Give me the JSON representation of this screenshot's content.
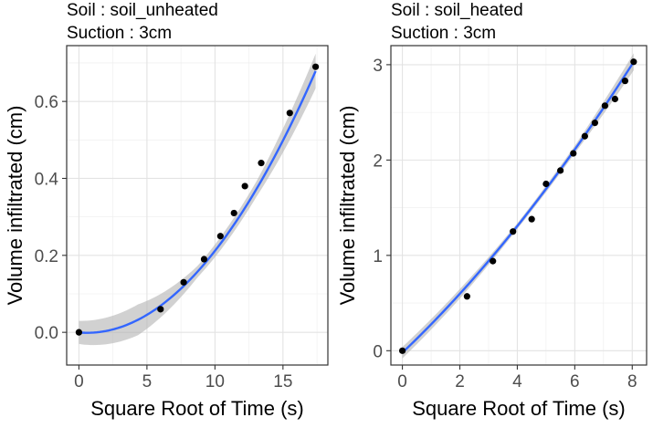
{
  "chart_data": [
    {
      "type": "scatter",
      "title_lines": [
        "Soil : soil_unheated",
        "Suction : 3cm"
      ],
      "xlabel": "Square Root of Time (s)",
      "ylabel": "Volume infiltrated (cm)",
      "xlim": [
        -0.9,
        18.3
      ],
      "ylim": [
        -0.085,
        0.745
      ],
      "xticks": [
        0,
        5,
        10,
        15
      ],
      "xtick_labels": [
        "0",
        "5",
        "10",
        "15"
      ],
      "yticks": [
        0.0,
        0.2,
        0.4,
        0.6
      ],
      "ytick_labels": [
        "0.0",
        "0.2",
        "0.4",
        "0.6"
      ],
      "grid": true,
      "points": {
        "x": [
          0,
          6.0,
          7.7,
          9.2,
          10.4,
          11.4,
          12.2,
          13.4,
          15.5,
          17.4
        ],
        "y": [
          0.0,
          0.06,
          0.13,
          0.19,
          0.25,
          0.31,
          0.38,
          0.44,
          0.57,
          0.69
        ]
      },
      "fit": {
        "model": "quadratic",
        "coefficients": [
          -0.0003,
          -0.0029,
          0.00241
        ],
        "color": "#3366ff",
        "ribbon_color": "#b3b3b3",
        "band": [
          0.03,
          0.04,
          0.015,
          0.02,
          0.045
        ]
      },
      "point_color": "#000000"
    },
    {
      "type": "scatter",
      "title_lines": [
        "Soil : soil_heated",
        "Suction : 3cm"
      ],
      "xlabel": "Square Root of Time (s)",
      "ylabel": "Volume infiltrated (cm)",
      "xlim": [
        -0.4,
        8.5
      ],
      "ylim": [
        -0.15,
        3.2
      ],
      "xticks": [
        0,
        2,
        4,
        6,
        8
      ],
      "xtick_labels": [
        "0",
        "2",
        "4",
        "6",
        "8"
      ],
      "yticks": [
        0,
        1,
        2,
        3
      ],
      "ytick_labels": [
        "0",
        "1",
        "2",
        "3"
      ],
      "grid": true,
      "points": {
        "x": [
          0,
          2.25,
          3.15,
          3.85,
          4.5,
          5.0,
          5.5,
          5.95,
          6.35,
          6.7,
          7.05,
          7.4,
          7.75,
          8.05
        ],
        "y": [
          0.0,
          0.57,
          0.94,
          1.25,
          1.38,
          1.75,
          1.89,
          2.07,
          2.25,
          2.39,
          2.57,
          2.64,
          2.83,
          3.03
        ]
      },
      "fit": {
        "model": "quadratic",
        "coefficients": [
          -0.02,
          0.2855,
          0.0116
        ],
        "color": "#3366ff",
        "ribbon_color": "#b3b3b3",
        "band": [
          0.06,
          0.05,
          0.03,
          0.04,
          0.09
        ]
      },
      "point_color": "#000000"
    }
  ]
}
